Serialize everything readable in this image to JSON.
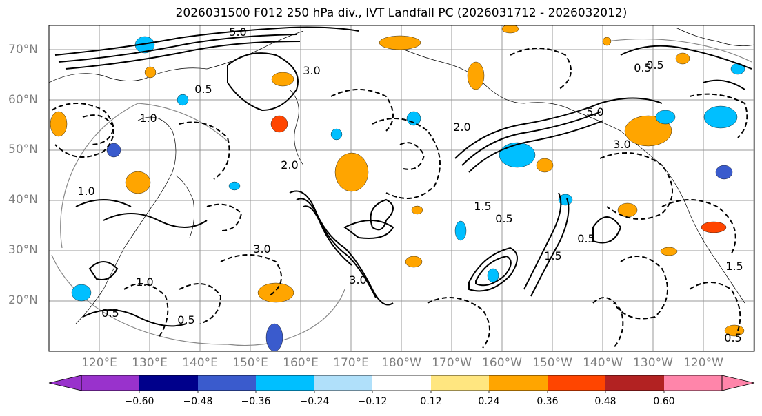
{
  "title": "2026031500 F012 250 hPa div., IVT Landfall PC (2026031712 - 2026032012)",
  "map": {
    "lat_labels": [
      "70°N",
      "60°N",
      "50°N",
      "40°N",
      "30°N",
      "20°N"
    ],
    "lon_labels": [
      "120°E",
      "130°E",
      "140°E",
      "150°E",
      "160°E",
      "170°E",
      "180°W",
      "170°W",
      "160°W",
      "150°W",
      "140°W",
      "130°W",
      "120°W"
    ],
    "contour_labels": [
      "5.0",
      "3.0",
      "0.5",
      "1.0",
      "2.0",
      "1.5",
      "0.5",
      "3.0",
      "5.0",
      "3.0",
      "1.0",
      "0.5",
      "2.0",
      "0.5",
      "1.5",
      "0.5",
      "3.0",
      "0.5",
      "1.0",
      "0.5",
      "1.5",
      "0.5"
    ]
  },
  "colorbar": {
    "tick_labels": [
      "−0.60",
      "−0.48",
      "−0.36",
      "−0.24",
      "−0.12",
      "0.12",
      "0.24",
      "0.36",
      "0.48",
      "0.60"
    ],
    "colors": [
      "#9932cc",
      "#00008b",
      "#3a5bcd",
      "#00bfff",
      "#b0e0fa",
      "#ffffff",
      "#ffe680",
      "#ffa500",
      "#ff4500",
      "#b22222",
      "#ff85aa"
    ]
  }
}
